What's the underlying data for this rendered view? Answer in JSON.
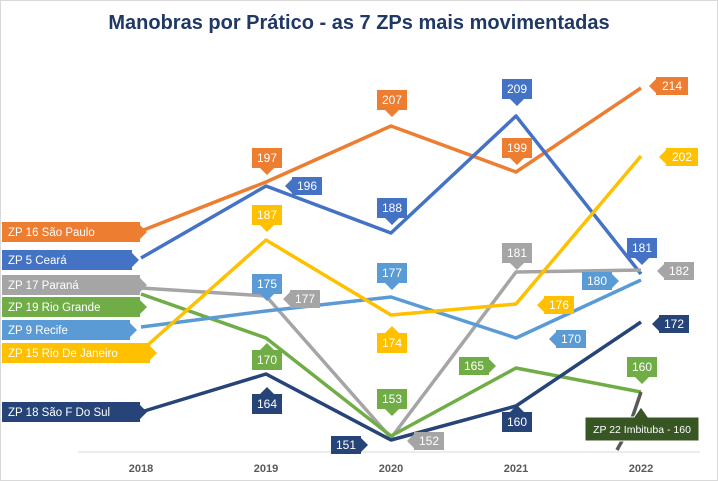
{
  "chart_data": {
    "type": "line",
    "title": "Manobras por Prático - as 7 ZPs mais movimentadas",
    "xlabel": "",
    "ylabel": "",
    "categories": [
      "2018",
      "2019",
      "2020",
      "2021",
      "2022"
    ],
    "series": [
      {
        "name": "ZP 16 São Paulo",
        "color": "#ed7d31",
        "values": [
          null,
          197,
          207,
          199,
          214
        ]
      },
      {
        "name": "ZP 5 Ceará",
        "color": "#4472c4",
        "values": [
          null,
          196,
          188,
          209,
          181
        ]
      },
      {
        "name": "ZP 17 Paraná",
        "color": "#a5a5a5",
        "values": [
          null,
          177,
          152,
          181,
          182
        ]
      },
      {
        "name": "ZP 19 Rio Grande",
        "color": "#70ad47",
        "values": [
          null,
          170,
          153,
          165,
          160
        ]
      },
      {
        "name": "ZP 9 Recife",
        "color": "#5b9bd5",
        "values": [
          null,
          175,
          177,
          170,
          180
        ]
      },
      {
        "name": "ZP 15 Rio De Janeiro",
        "color": "#ffc000",
        "values": [
          null,
          187,
          174,
          176,
          202
        ]
      },
      {
        "name": "ZP 18 São F Do Sul",
        "color": "#264478",
        "values": [
          null,
          164,
          151,
          160,
          172
        ]
      }
    ],
    "annotation": {
      "text": "ZP 22 Imbituba - 160",
      "color": "#375623"
    },
    "grid": false,
    "legend": "left"
  }
}
